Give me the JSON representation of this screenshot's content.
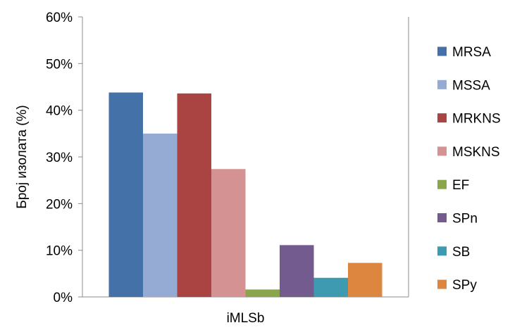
{
  "chart_data": {
    "type": "bar",
    "ylabel": "Број изолата (%)",
    "xlabel": "",
    "categories": [
      "iMLSb"
    ],
    "ylim": [
      0,
      60
    ],
    "yticks": [
      "0%",
      "10%",
      "20%",
      "30%",
      "40%",
      "50%",
      "60%"
    ],
    "grid": false,
    "legend_position": "right",
    "series": [
      {
        "name": "MRSA",
        "values": [
          43.8
        ],
        "color": "#4472A8"
      },
      {
        "name": "MSSA",
        "values": [
          35.0
        ],
        "color": "#95ABD3"
      },
      {
        "name": "MRKNS",
        "values": [
          43.6
        ],
        "color": "#A94442"
      },
      {
        "name": "MSKNS",
        "values": [
          27.4
        ],
        "color": "#D49392"
      },
      {
        "name": "EF",
        "values": [
          1.6
        ],
        "color": "#8BA54B"
      },
      {
        "name": "SPn",
        "values": [
          11.1
        ],
        "color": "#735A8F"
      },
      {
        "name": "SB",
        "values": [
          4.1
        ],
        "color": "#3E9AB0"
      },
      {
        "name": "SPy",
        "values": [
          7.3
        ],
        "color": "#DD8640"
      }
    ]
  }
}
